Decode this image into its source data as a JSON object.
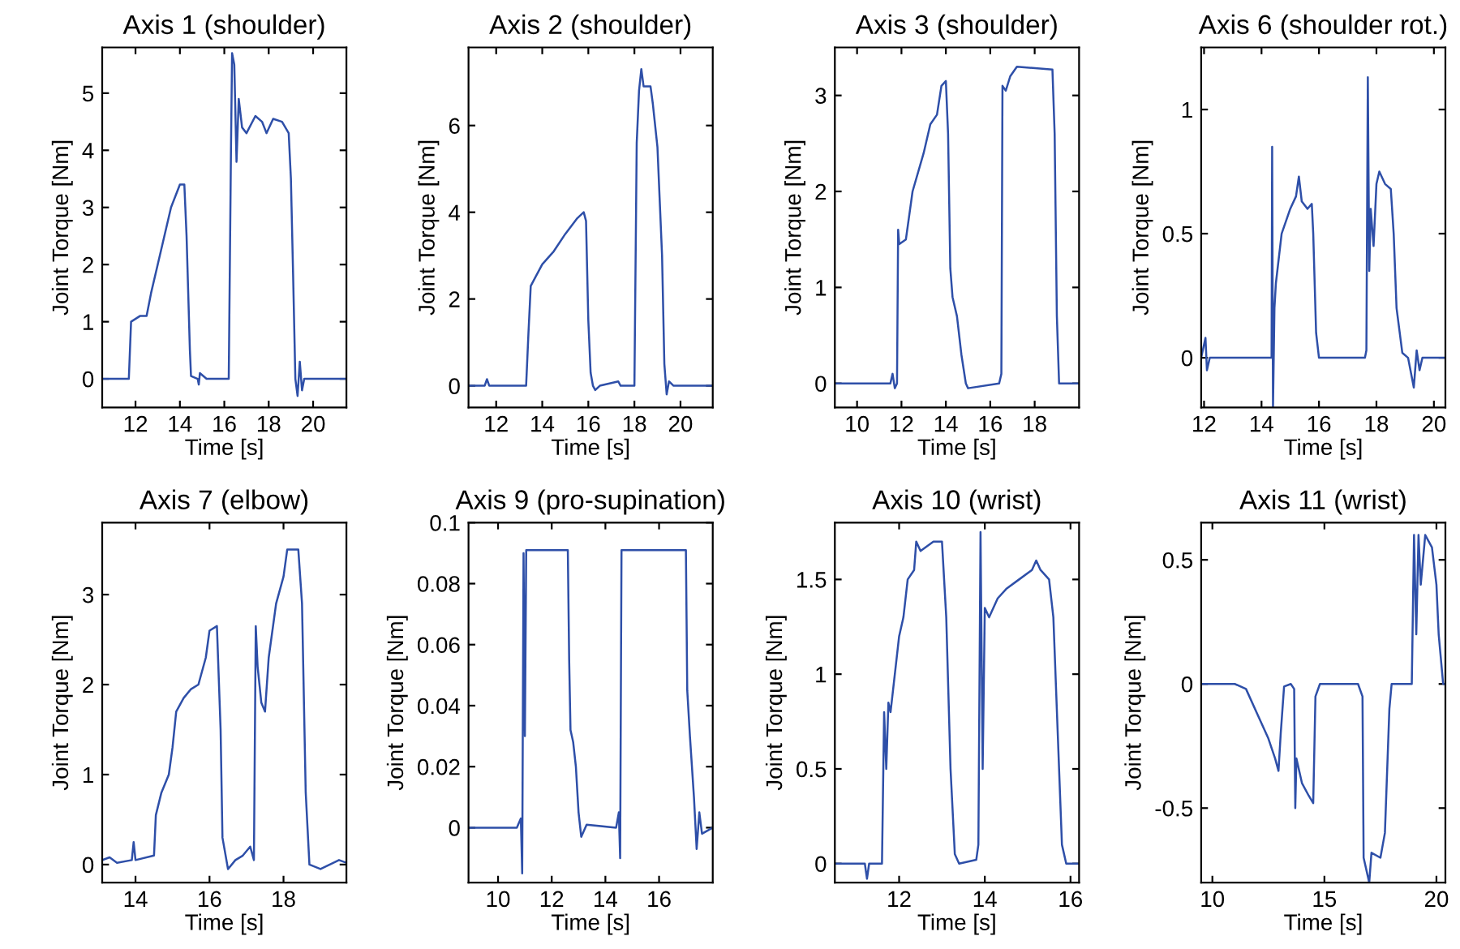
{
  "chart_data": [
    {
      "type": "line",
      "title": "Axis 1 (shoulder)",
      "xlabel": "Time [s]",
      "ylabel": "Joint Torque [Nm]",
      "xlim": [
        10.5,
        21.5
      ],
      "ylim": [
        -0.5,
        5.8
      ],
      "xticks": [
        12,
        14,
        16,
        18,
        20
      ],
      "yticks": [
        0,
        1,
        2,
        3,
        4,
        5
      ],
      "x": [
        10.5,
        11.7,
        11.8,
        12.2,
        12.5,
        12.7,
        13,
        13.3,
        13.6,
        14,
        14.2,
        14.3,
        14.45,
        14.5,
        14.8,
        14.85,
        14.9,
        15.2,
        16.2,
        16.3,
        16.35,
        16.45,
        16.55,
        16.65,
        16.8,
        17,
        17.4,
        17.7,
        17.9,
        18.2,
        18.6,
        18.9,
        19,
        19.1,
        19.2,
        19.3,
        19.4,
        19.5,
        19.6,
        21.5
      ],
      "series": [
        {
          "color": "#2e4fa8",
          "values": [
            0,
            0,
            1,
            1.1,
            1.1,
            1.5,
            2,
            2.5,
            3,
            3.4,
            3.4,
            2.5,
            0.5,
            0.05,
            0,
            -0.1,
            0.1,
            0,
            0,
            4,
            5.7,
            5.5,
            3.8,
            4.9,
            4.4,
            4.3,
            4.6,
            4.5,
            4.3,
            4.55,
            4.5,
            4.3,
            3.5,
            1.8,
            0,
            -0.3,
            0.3,
            -0.2,
            0,
            0
          ]
        }
      ]
    },
    {
      "type": "line",
      "title": "Axis 2 (shoulder)",
      "xlabel": "Time [s]",
      "ylabel": "Joint Torque [Nm]",
      "xlim": [
        10.8,
        21.4
      ],
      "ylim": [
        -0.5,
        7.8
      ],
      "xticks": [
        12,
        14,
        16,
        18,
        20
      ],
      "yticks": [
        0,
        2,
        4,
        6
      ],
      "x": [
        10.8,
        11.5,
        11.6,
        11.7,
        13.3,
        13.4,
        13.5,
        13.7,
        14,
        14.5,
        15,
        15.5,
        15.8,
        15.9,
        16,
        16.1,
        16.2,
        16.3,
        16.5,
        17.3,
        17.4,
        18,
        18.1,
        18.2,
        18.3,
        18.4,
        18.7,
        18.8,
        19,
        19.2,
        19.3,
        19.4,
        19.5,
        19.7,
        21.4
      ],
      "series": [
        {
          "color": "#2e4fa8",
          "values": [
            0,
            0,
            0.15,
            0,
            0,
            1.2,
            2.3,
            2.5,
            2.8,
            3.1,
            3.5,
            3.85,
            4,
            3.8,
            1.5,
            0.3,
            0,
            -0.1,
            0,
            0.1,
            0,
            0,
            5.6,
            6.8,
            7.3,
            6.9,
            6.9,
            6.5,
            5.5,
            3,
            0.5,
            -0.2,
            0.1,
            0,
            0
          ]
        }
      ]
    },
    {
      "type": "line",
      "title": "Axis 3 (shoulder)",
      "xlabel": "Time [s]",
      "ylabel": "Joint Torque [Nm]",
      "xlim": [
        9,
        20
      ],
      "ylim": [
        -0.25,
        3.5
      ],
      "xticks": [
        10,
        12,
        14,
        16,
        18
      ],
      "yticks": [
        0,
        1,
        2,
        3
      ],
      "x": [
        9,
        11.5,
        11.6,
        11.7,
        11.8,
        11.85,
        11.9,
        12.2,
        12.5,
        13,
        13.3,
        13.6,
        13.8,
        14,
        14.1,
        14.2,
        14.3,
        14.5,
        14.7,
        14.9,
        15,
        16.4,
        16.5,
        16.55,
        16.7,
        16.9,
        17.2,
        18.8,
        18.9,
        19,
        19.1,
        20
      ],
      "series": [
        {
          "color": "#2e4fa8",
          "values": [
            0,
            0,
            0.1,
            -0.05,
            0,
            1.6,
            1.45,
            1.5,
            2,
            2.4,
            2.7,
            2.8,
            3.1,
            3.15,
            2.6,
            1.2,
            0.9,
            0.7,
            0.3,
            0,
            -0.05,
            0,
            0.1,
            3.1,
            3.05,
            3.2,
            3.3,
            3.27,
            2.6,
            0.7,
            0,
            0
          ]
        }
      ]
    },
    {
      "type": "line",
      "title": "Axis 6 (shoulder rot.)",
      "xlabel": "Time [s]",
      "ylabel": "Joint Torque [Nm]",
      "xlim": [
        11.9,
        20.4
      ],
      "ylim": [
        -0.2,
        1.25
      ],
      "xticks": [
        12,
        14,
        16,
        18,
        20
      ],
      "yticks": [
        0,
        0.5,
        1
      ],
      "x": [
        11.9,
        12.05,
        12.1,
        12.2,
        14.35,
        14.37,
        14.4,
        14.45,
        14.5,
        14.7,
        15,
        15.2,
        15.3,
        15.4,
        15.6,
        15.75,
        15.8,
        15.9,
        16,
        17.6,
        17.65,
        17.7,
        17.75,
        17.8,
        17.9,
        18,
        18.1,
        18.3,
        18.5,
        18.6,
        18.7,
        18.9,
        19.1,
        19.3,
        19.4,
        19.5,
        19.6,
        20.4
      ],
      "series": [
        {
          "color": "#2e4fa8",
          "values": [
            0,
            0.08,
            -0.05,
            0,
            0,
            0.85,
            -0.2,
            0.2,
            0.3,
            0.5,
            0.6,
            0.65,
            0.73,
            0.63,
            0.6,
            0.62,
            0.5,
            0.1,
            0,
            0,
            0.03,
            1.13,
            0.35,
            0.6,
            0.45,
            0.7,
            0.75,
            0.7,
            0.68,
            0.5,
            0.2,
            0.02,
            0,
            -0.12,
            0.03,
            -0.05,
            0,
            0
          ]
        }
      ]
    },
    {
      "type": "line",
      "title": "Axis 7 (elbow)",
      "xlabel": "Time [s]",
      "ylabel": "Joint Torque [Nm]",
      "xlim": [
        13.1,
        19.7
      ],
      "ylim": [
        -0.2,
        3.8
      ],
      "xticks": [
        14,
        16,
        18
      ],
      "yticks": [
        0,
        1,
        2,
        3
      ],
      "x": [
        13.1,
        13.3,
        13.5,
        13.9,
        13.95,
        14,
        14.5,
        14.55,
        14.7,
        14.9,
        15,
        15.1,
        15.3,
        15.5,
        15.7,
        15.9,
        16,
        16.2,
        16.3,
        16.35,
        16.5,
        16.7,
        16.9,
        17.1,
        17.2,
        17.25,
        17.3,
        17.4,
        17.5,
        17.6,
        17.8,
        18,
        18.1,
        18.4,
        18.5,
        18.6,
        18.7,
        19,
        19.5,
        19.7
      ],
      "series": [
        {
          "color": "#2e4fa8",
          "values": [
            0.05,
            0.08,
            0.02,
            0.05,
            0.25,
            0.05,
            0.1,
            0.55,
            0.8,
            1.0,
            1.3,
            1.7,
            1.85,
            1.95,
            2.0,
            2.3,
            2.6,
            2.65,
            1.5,
            0.3,
            -0.05,
            0.05,
            0.1,
            0.2,
            0.05,
            2.65,
            2.2,
            1.8,
            1.7,
            2.3,
            2.9,
            3.2,
            3.5,
            3.5,
            2.9,
            0.8,
            0,
            -0.05,
            0.05,
            0.02
          ]
        }
      ]
    },
    {
      "type": "line",
      "title": "Axis 9 (pro-supination)",
      "xlabel": "Time [s]",
      "ylabel": "Joint Torque [Nm]",
      "xlim": [
        8.9,
        18
      ],
      "ylim": [
        -0.018,
        0.1
      ],
      "xticks": [
        10,
        12,
        14,
        16
      ],
      "yticks": [
        0,
        0.02,
        0.04,
        0.06,
        0.08,
        0.1
      ],
      "x": [
        8.9,
        10.7,
        10.85,
        10.9,
        10.95,
        11,
        11.05,
        12.6,
        12.65,
        12.7,
        12.8,
        12.9,
        13,
        13.1,
        13.3,
        14.4,
        14.5,
        14.55,
        14.6,
        17,
        17.05,
        17.15,
        17.3,
        17.4,
        17.5,
        17.6,
        18
      ],
      "series": [
        {
          "color": "#2e4fa8",
          "values": [
            0,
            0,
            0.003,
            -0.015,
            0.09,
            0.03,
            0.091,
            0.091,
            0.055,
            0.032,
            0.028,
            0.02,
            0.005,
            -0.003,
            0.001,
            0,
            0.005,
            -0.01,
            0.091,
            0.091,
            0.045,
            0.03,
            0.01,
            -0.007,
            0.005,
            -0.002,
            0
          ]
        }
      ]
    },
    {
      "type": "line",
      "title": "Axis 10 (wrist)",
      "xlabel": "Time [s]",
      "ylabel": "Joint Torque [Nm]",
      "xlim": [
        10.5,
        16.2
      ],
      "ylim": [
        -0.1,
        1.8
      ],
      "xticks": [
        12,
        14,
        16
      ],
      "yticks": [
        0,
        0.5,
        1,
        1.5
      ],
      "x": [
        10.5,
        11.2,
        11.25,
        11.3,
        11.6,
        11.65,
        11.7,
        11.75,
        11.8,
        11.9,
        12,
        12.1,
        12.2,
        12.35,
        12.4,
        12.5,
        12.8,
        13,
        13.1,
        13.2,
        13.3,
        13.4,
        13.8,
        13.85,
        13.9,
        13.95,
        14,
        14.1,
        14.3,
        14.5,
        14.8,
        15.1,
        15.2,
        15.3,
        15.5,
        15.6,
        15.7,
        15.8,
        15.9,
        16.2
      ],
      "series": [
        {
          "color": "#2e4fa8",
          "values": [
            0,
            0,
            -0.08,
            0,
            0,
            0.8,
            0.5,
            0.85,
            0.8,
            1.0,
            1.2,
            1.3,
            1.5,
            1.55,
            1.7,
            1.65,
            1.7,
            1.7,
            1.3,
            0.5,
            0.05,
            0,
            0.02,
            0.1,
            1.75,
            0.5,
            1.35,
            1.3,
            1.4,
            1.45,
            1.5,
            1.55,
            1.6,
            1.55,
            1.5,
            1.3,
            0.7,
            0.1,
            0,
            0
          ]
        }
      ]
    },
    {
      "type": "line",
      "title": "Axis 11 (wrist)",
      "xlabel": "Time [s]",
      "ylabel": "Joint Torque [Nm]",
      "xlim": [
        9.5,
        20.4
      ],
      "ylim": [
        -0.8,
        0.65
      ],
      "xticks": [
        10,
        15,
        20
      ],
      "yticks": [
        -0.5,
        0,
        0.5
      ],
      "x": [
        9.5,
        11,
        11.5,
        12,
        12.5,
        12.8,
        12.95,
        13.05,
        13.2,
        13.5,
        13.65,
        13.7,
        13.75,
        14,
        14.3,
        14.5,
        14.6,
        14.8,
        16.5,
        16.7,
        16.75,
        17,
        17.1,
        17.5,
        17.7,
        17.9,
        18,
        18.9,
        19,
        19.1,
        19.2,
        19.3,
        19.5,
        19.8,
        20,
        20.1,
        20.3,
        20.4
      ],
      "series": [
        {
          "color": "#2e4fa8",
          "values": [
            0,
            0,
            -0.02,
            -0.12,
            -0.22,
            -0.3,
            -0.35,
            -0.2,
            -0.01,
            0,
            -0.02,
            -0.5,
            -0.3,
            -0.4,
            -0.45,
            -0.48,
            -0.05,
            0,
            0,
            -0.05,
            -0.7,
            -0.8,
            -0.68,
            -0.7,
            -0.6,
            -0.1,
            0,
            0,
            0.6,
            0.2,
            0.6,
            0.4,
            0.6,
            0.55,
            0.4,
            0.2,
            0,
            0
          ]
        }
      ]
    }
  ]
}
